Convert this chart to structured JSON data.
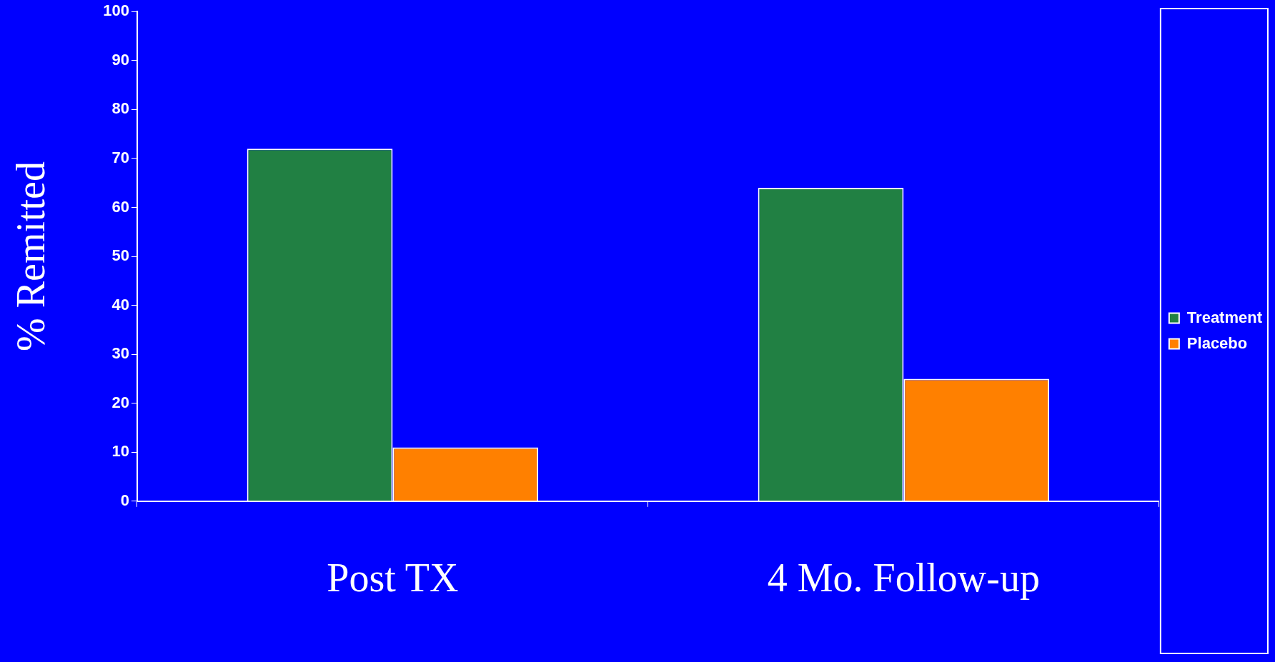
{
  "chart_data": {
    "type": "bar",
    "ylabel": "% Remitted",
    "categories": [
      "Post TX",
      "4 Mo. Follow-up"
    ],
    "series": [
      {
        "name": "Treatment",
        "color": "#218043",
        "values": [
          72,
          64
        ]
      },
      {
        "name": "Placebo",
        "color": "#ff8000",
        "values": [
          11,
          25
        ]
      }
    ],
    "ylim": [
      0,
      100
    ],
    "yticks": [
      0,
      10,
      20,
      30,
      40,
      50,
      60,
      70,
      80,
      90,
      100
    ],
    "grid": false,
    "legend": "right"
  }
}
